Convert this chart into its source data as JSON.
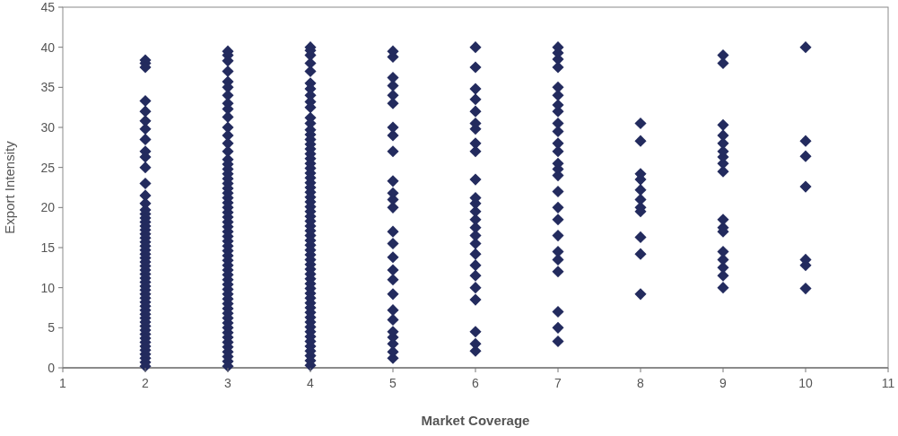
{
  "chart_data": {
    "type": "scatter",
    "xlabel": "Market Coverage",
    "ylabel": "Export Intensity",
    "xlim": [
      1,
      11
    ],
    "xticks": [
      1,
      2,
      3,
      4,
      5,
      6,
      7,
      8,
      9,
      10,
      11
    ],
    "ylim": [
      0,
      45
    ],
    "yticks": [
      0,
      5,
      10,
      15,
      20,
      25,
      30,
      35,
      40,
      45
    ],
    "grid": false,
    "marker": "diamond",
    "series": [
      {
        "color": "#232b5e",
        "x": [
          2,
          2,
          2,
          2,
          2,
          2,
          2,
          2,
          2,
          2,
          2,
          2,
          2,
          2,
          2,
          2,
          2,
          2,
          2,
          2,
          2,
          2,
          2,
          2,
          2,
          2,
          2,
          2,
          2,
          2,
          2,
          2,
          2,
          2,
          2,
          2,
          2,
          2,
          2,
          2,
          2,
          2,
          2,
          2,
          2,
          2,
          2,
          2,
          2,
          2,
          2,
          2,
          2,
          2
        ],
        "values": [
          0.2,
          0.7,
          1.2,
          1.7,
          2.2,
          2.7,
          3.2,
          3.7,
          4.2,
          4.7,
          5.2,
          5.7,
          6.2,
          6.7,
          7.2,
          7.7,
          8.2,
          8.7,
          9.2,
          9.7,
          10.2,
          10.7,
          11.2,
          11.7,
          12.2,
          12.7,
          13.2,
          13.7,
          14.2,
          14.7,
          15.2,
          15.7,
          16.2,
          16.7,
          17.2,
          17.7,
          18.2,
          18.7,
          19.2,
          19.7,
          20.5,
          21.5,
          23,
          25,
          26.3,
          27,
          28.5,
          29.8,
          30.8,
          32,
          33.3,
          37.5,
          38,
          38.4
        ]
      },
      {
        "color": "#232b5e",
        "x": [
          3,
          3,
          3,
          3,
          3,
          3,
          3,
          3,
          3,
          3,
          3,
          3,
          3,
          3,
          3,
          3,
          3,
          3,
          3,
          3,
          3,
          3,
          3,
          3,
          3,
          3,
          3,
          3,
          3,
          3,
          3,
          3,
          3,
          3,
          3,
          3,
          3,
          3,
          3,
          3,
          3,
          3,
          3,
          3,
          3,
          3,
          3,
          3,
          3,
          3,
          3,
          3,
          3,
          3,
          3,
          3,
          3,
          3
        ],
        "values": [
          0.2,
          0.8,
          1.4,
          2,
          2.6,
          3.2,
          3.8,
          4.4,
          5,
          5.6,
          6.2,
          6.8,
          7.4,
          8,
          8.6,
          9.2,
          9.8,
          10.4,
          11,
          11.6,
          12.2,
          12.8,
          13.4,
          14,
          14.6,
          15.2,
          15.8,
          16.4,
          17,
          17.6,
          18.2,
          18.8,
          19.4,
          20,
          20.6,
          21.2,
          21.8,
          22.4,
          23,
          23.6,
          24.2,
          24.8,
          25.4,
          26,
          27,
          28,
          29,
          30,
          31.3,
          32.3,
          33,
          34,
          35,
          35.7,
          37,
          38.3,
          39,
          39.5
        ]
      },
      {
        "color": "#232b5e",
        "x": [
          4,
          4,
          4,
          4,
          4,
          4,
          4,
          4,
          4,
          4,
          4,
          4,
          4,
          4,
          4,
          4,
          4,
          4,
          4,
          4,
          4,
          4,
          4,
          4,
          4,
          4,
          4,
          4,
          4,
          4,
          4,
          4,
          4,
          4,
          4,
          4,
          4,
          4,
          4,
          4,
          4,
          4,
          4,
          4,
          4,
          4,
          4,
          4,
          4,
          4,
          4,
          4,
          4,
          4,
          4,
          4,
          4,
          4,
          4,
          4,
          4,
          4
        ],
        "values": [
          0.3,
          0.9,
          1.5,
          2.1,
          2.7,
          3.3,
          3.9,
          4.5,
          5.1,
          5.7,
          6.3,
          6.9,
          7.5,
          8.1,
          8.7,
          9.3,
          9.9,
          10.5,
          11.1,
          11.7,
          12.3,
          12.9,
          13.5,
          14.1,
          14.7,
          15.3,
          15.9,
          16.5,
          17.1,
          17.7,
          18.3,
          18.9,
          19.5,
          20.1,
          20.7,
          21.3,
          21.9,
          22.5,
          23.1,
          23.7,
          24.3,
          24.9,
          25.5,
          26.1,
          26.7,
          27.3,
          27.9,
          28.5,
          29.1,
          29.7,
          30.5,
          31.2,
          32.5,
          33.2,
          34,
          34.8,
          35.5,
          37,
          38,
          39,
          39.6,
          40
        ]
      },
      {
        "color": "#232b5e",
        "x": [
          5,
          5,
          5,
          5,
          5,
          5,
          5,
          5,
          5,
          5,
          5,
          5,
          5,
          5,
          5,
          5,
          5,
          5,
          5,
          5,
          5,
          5,
          5,
          5,
          5,
          5
        ],
        "values": [
          39.5,
          38.8,
          36.2,
          35.2,
          34,
          33,
          30,
          29,
          27,
          23.3,
          21.8,
          21,
          20,
          17,
          15.5,
          13.8,
          12.2,
          11,
          9.2,
          7.2,
          6,
          4.5,
          3.8,
          3,
          2,
          1.2
        ]
      },
      {
        "color": "#232b5e",
        "x": [
          6,
          6,
          6,
          6,
          6,
          6,
          6,
          6,
          6,
          6,
          6,
          6,
          6,
          6,
          6,
          6,
          6,
          6,
          6,
          6,
          6,
          6,
          6,
          6,
          6
        ],
        "values": [
          40,
          37.5,
          34.8,
          33.5,
          32,
          30.5,
          29.8,
          28,
          27,
          23.5,
          21.2,
          20.5,
          19.5,
          18.5,
          17.5,
          16.5,
          15.5,
          14.2,
          12.8,
          11.5,
          10,
          8.5,
          4.5,
          3,
          2.1
        ]
      },
      {
        "color": "#232b5e",
        "x": [
          7,
          7,
          7,
          7,
          7,
          7,
          7,
          7,
          7,
          7,
          7,
          7,
          7,
          7,
          7,
          7,
          7,
          7,
          7,
          7,
          7,
          7,
          7,
          7,
          7
        ],
        "values": [
          40,
          39.3,
          38.5,
          37.5,
          35,
          34,
          32.8,
          32,
          30.5,
          29.5,
          28,
          27,
          25.5,
          24.8,
          24,
          22,
          20,
          18.5,
          16.5,
          14.5,
          13.5,
          12,
          7,
          5,
          3.3
        ]
      },
      {
        "color": "#232b5e",
        "x": [
          8,
          8,
          8,
          8,
          8,
          8,
          8,
          8,
          8,
          8,
          8
        ],
        "values": [
          30.5,
          28.3,
          24.2,
          23.5,
          22.2,
          21,
          20,
          19.5,
          16.3,
          14.2,
          9.2
        ]
      },
      {
        "color": "#232b5e",
        "x": [
          9,
          9,
          9,
          9,
          9,
          9,
          9,
          9,
          9,
          9,
          9,
          9,
          9,
          9,
          9,
          9,
          9
        ],
        "values": [
          39,
          38,
          30.3,
          29,
          28,
          27,
          26.3,
          25.5,
          24.5,
          18.5,
          17.5,
          17,
          14.5,
          13.5,
          12.5,
          11.5,
          10
        ]
      },
      {
        "color": "#232b5e",
        "x": [
          10,
          10,
          10,
          10,
          10,
          10,
          10
        ],
        "values": [
          40,
          28.3,
          26.4,
          22.6,
          13.5,
          12.8,
          9.9
        ]
      }
    ]
  }
}
